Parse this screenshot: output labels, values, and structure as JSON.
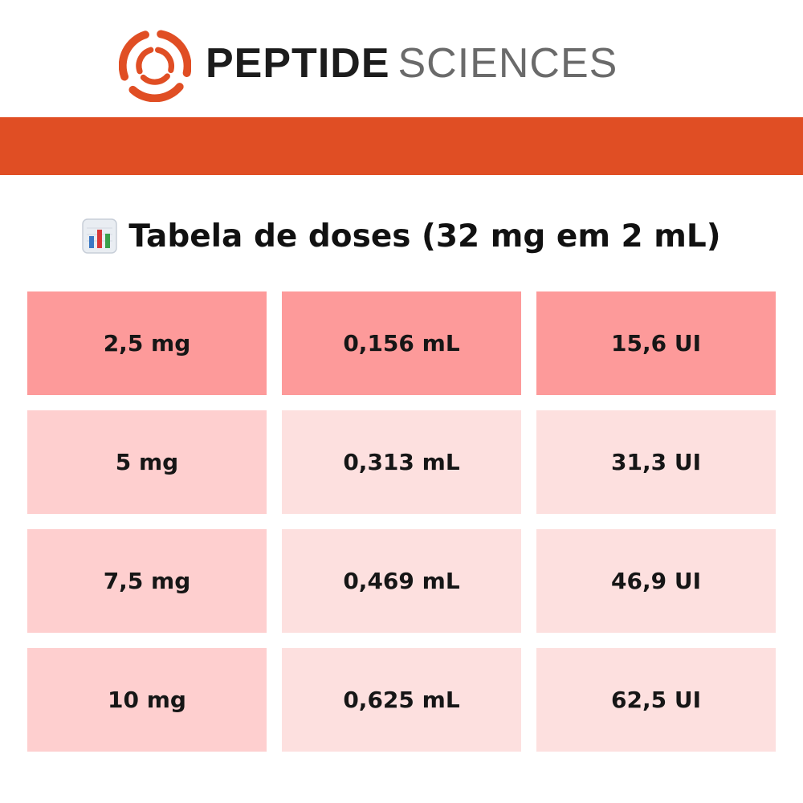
{
  "brand": {
    "name_bold": "PEPTIDE",
    "name_light": "SCIENCES",
    "logo_icon": "swirl-logo-icon",
    "accent_color": "#e04e24"
  },
  "title": {
    "icon": "bar-chart-icon",
    "text": "Tabela de doses (32 mg em 2 mL)"
  },
  "colors": {
    "accent_bar": "#e04e24",
    "first_row": "#fd9a9a",
    "first_column": "#fecfcf",
    "light_cell": "#fde0df"
  },
  "table": {
    "rows": [
      [
        "2,5 mg",
        "0,156 mL",
        "15,6 UI"
      ],
      [
        "5 mg",
        "0,313 mL",
        "31,3 UI"
      ],
      [
        "7,5 mg",
        "0,469 mL",
        "46,9 UI"
      ],
      [
        "10 mg",
        "0,625 mL",
        "62,5 UI"
      ]
    ]
  }
}
